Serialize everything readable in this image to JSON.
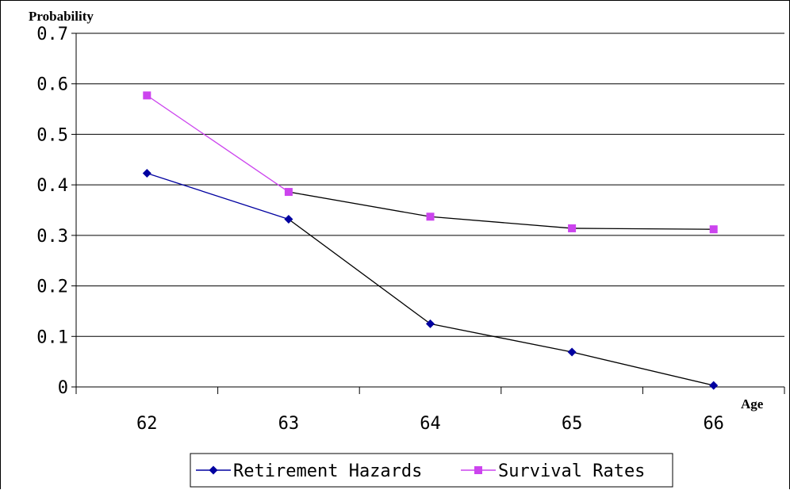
{
  "chart_data": {
    "type": "line",
    "ylabel": "Probability",
    "xlabel": "Age",
    "categories": [
      "62",
      "63",
      "64",
      "65",
      "66"
    ],
    "ylim": [
      0,
      0.7
    ],
    "yticks": [
      "0",
      "0.1",
      "0.2",
      "0.3",
      "0.4",
      "0.5",
      "0.6",
      "0.7"
    ],
    "grid": true,
    "legend_position": "bottom",
    "series": [
      {
        "name": "Retirement Hazards",
        "values": [
          0.423,
          0.332,
          0.125,
          0.069,
          0.003
        ],
        "color": "#0000a0",
        "marker": "diamond"
      },
      {
        "name": "Survival Rates",
        "values": [
          0.577,
          0.386,
          0.337,
          0.314,
          0.312
        ],
        "color": "#cc44ee",
        "marker": "square"
      }
    ]
  }
}
